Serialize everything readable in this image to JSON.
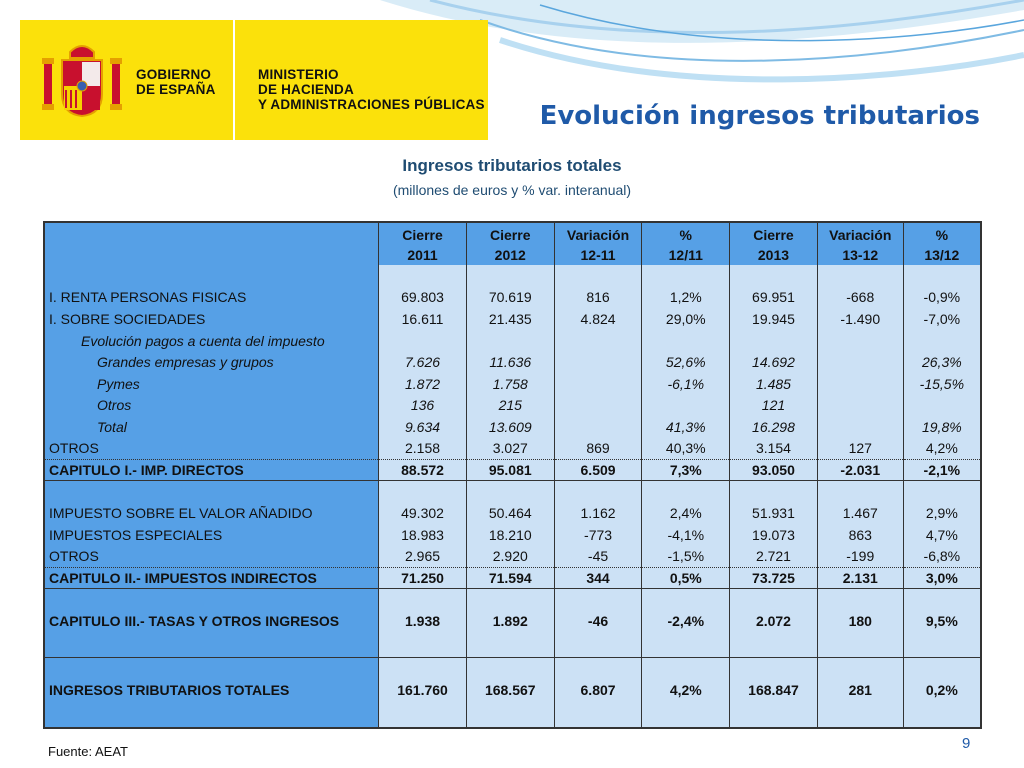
{
  "logo": {
    "gov_line1": "GOBIERNO",
    "gov_line2": "DE ESPAÑA",
    "min_line1": "MINISTERIO",
    "min_line2": "DE HACIENDA",
    "min_line3": "Y ADMINISTRACIONES PÚBLICAS"
  },
  "slide_title": "Evolución ingresos tributarios",
  "table_title": "Ingresos tributarios totales",
  "table_subtitle": "(millones de euros y % var. interanual)",
  "headers": [
    {
      "l1": "",
      "l2": ""
    },
    {
      "l1": "Cierre",
      "l2": "2011"
    },
    {
      "l1": "Cierre",
      "l2": "2012"
    },
    {
      "l1": "Variación",
      "l2": "12-11"
    },
    {
      "l1": "%",
      "l2": "12/11"
    },
    {
      "l1": "Cierre",
      "l2": "2013"
    },
    {
      "l1": "Variación",
      "l2": "13-12"
    },
    {
      "l1": "%",
      "l2": "13/12"
    }
  ],
  "rows": [
    {
      "label": "I. RENTA PERSONAS FISICAS",
      "c2011": "69.803",
      "c2012": "70.619",
      "v1211": "816",
      "p1211": "1,2%",
      "c2013": "69.951",
      "v1312": "-668",
      "p1312": "-0,9%"
    },
    {
      "label": "I. SOBRE SOCIEDADES",
      "c2011": "16.611",
      "c2012": "21.435",
      "v1211": "4.824",
      "p1211": "29,0%",
      "c2013": "19.945",
      "v1312": "-1.490",
      "p1312": "-7,0%"
    },
    {
      "label": "Evolución pagos a cuenta del impuesto",
      "c2011": "",
      "c2012": "",
      "v1211": "",
      "p1211": "",
      "c2013": "",
      "v1312": "",
      "p1312": ""
    },
    {
      "label": "Grandes empresas y grupos",
      "c2011": "7.626",
      "c2012": "11.636",
      "v1211": "",
      "p1211": "52,6%",
      "c2013": "14.692",
      "v1312": "",
      "p1312": "26,3%"
    },
    {
      "label": "Pymes",
      "c2011": "1.872",
      "c2012": "1.758",
      "v1211": "",
      "p1211": "-6,1%",
      "c2013": "1.485",
      "v1312": "",
      "p1312": "-15,5%"
    },
    {
      "label": "Otros",
      "c2011": "136",
      "c2012": "215",
      "v1211": "",
      "p1211": "",
      "c2013": "121",
      "v1312": "",
      "p1312": ""
    },
    {
      "label": "Total",
      "c2011": "9.634",
      "c2012": "13.609",
      "v1211": "",
      "p1211": "41,3%",
      "c2013": "16.298",
      "v1312": "",
      "p1312": "19,8%"
    },
    {
      "label": "OTROS",
      "c2011": "2.158",
      "c2012": "3.027",
      "v1211": "869",
      "p1211": "40,3%",
      "c2013": "3.154",
      "v1312": "127",
      "p1312": "4,2%"
    },
    {
      "label": "CAPITULO I.- IMP. DIRECTOS",
      "c2011": "88.572",
      "c2012": "95.081",
      "v1211": "6.509",
      "p1211": "7,3%",
      "c2013": "93.050",
      "v1312": "-2.031",
      "p1312": "-2,1%"
    },
    {
      "label": "IMPUESTO SOBRE EL VALOR AÑADIDO",
      "c2011": "49.302",
      "c2012": "50.464",
      "v1211": "1.162",
      "p1211": "2,4%",
      "c2013": "51.931",
      "v1312": "1.467",
      "p1312": "2,9%"
    },
    {
      "label": "IMPUESTOS ESPECIALES",
      "c2011": "18.983",
      "c2012": "18.210",
      "v1211": "-773",
      "p1211": "-4,1%",
      "c2013": "19.073",
      "v1312": "863",
      "p1312": "4,7%"
    },
    {
      "label": "OTROS",
      "c2011": "2.965",
      "c2012": "2.920",
      "v1211": "-45",
      "p1211": "-1,5%",
      "c2013": "2.721",
      "v1312": "-199",
      "p1312": "-6,8%"
    },
    {
      "label": "CAPITULO II.- IMPUESTOS INDIRECTOS",
      "c2011": "71.250",
      "c2012": "71.594",
      "v1211": "344",
      "p1211": "0,5%",
      "c2013": "73.725",
      "v1312": "2.131",
      "p1312": "3,0%"
    },
    {
      "label": "CAPITULO III.- TASAS Y OTROS INGRESOS",
      "c2011": "1.938",
      "c2012": "1.892",
      "v1211": "-46",
      "p1211": "-2,4%",
      "c2013": "2.072",
      "v1312": "180",
      "p1312": "9,5%"
    },
    {
      "label": "INGRESOS TRIBUTARIOS TOTALES",
      "c2011": "161.760",
      "c2012": "168.567",
      "v1211": "6.807",
      "p1211": "4,2%",
      "c2013": "168.847",
      "v1312": "281",
      "p1312": "0,2%"
    }
  ],
  "source": "Fuente: AEAT",
  "page_number": "9",
  "colors": {
    "header_blue": "#56a0e6",
    "cell_light_blue": "#cce1f5",
    "title_blue": "#1f5aa8",
    "logo_yellow": "#fbe10b"
  }
}
